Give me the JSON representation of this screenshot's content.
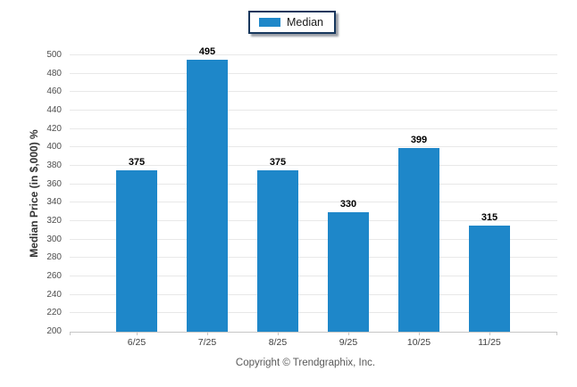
{
  "chart_data": {
    "type": "bar",
    "title": "",
    "categories": [
      "6/25",
      "7/25",
      "8/25",
      "9/25",
      "10/25",
      "11/25"
    ],
    "series": [
      {
        "name": "Median",
        "values": [
          375,
          495,
          375,
          330,
          399,
          315
        ],
        "color": "#1e87c9"
      }
    ],
    "xlabel": "",
    "ylabel": "Median Price (in $,000) %",
    "ylim": [
      200,
      500
    ],
    "ytick_step": 20,
    "grid": true,
    "legend_position": "top-center",
    "value_labels": true
  },
  "legend": {
    "items": [
      {
        "label": "Median",
        "color": "#1e87c9"
      }
    ]
  },
  "footer": {
    "copyright": "Copyright © Trendgraphix, Inc."
  },
  "colors": {
    "bar": "#1e87c9",
    "legend_border": "#17375d",
    "gridline": "#e8e8e8",
    "axis_line": "#c6c6c6",
    "tick_text": "#4d4d4d",
    "x_label_text": "#404040",
    "value_text": "#000000",
    "footer_text": "#595959"
  }
}
